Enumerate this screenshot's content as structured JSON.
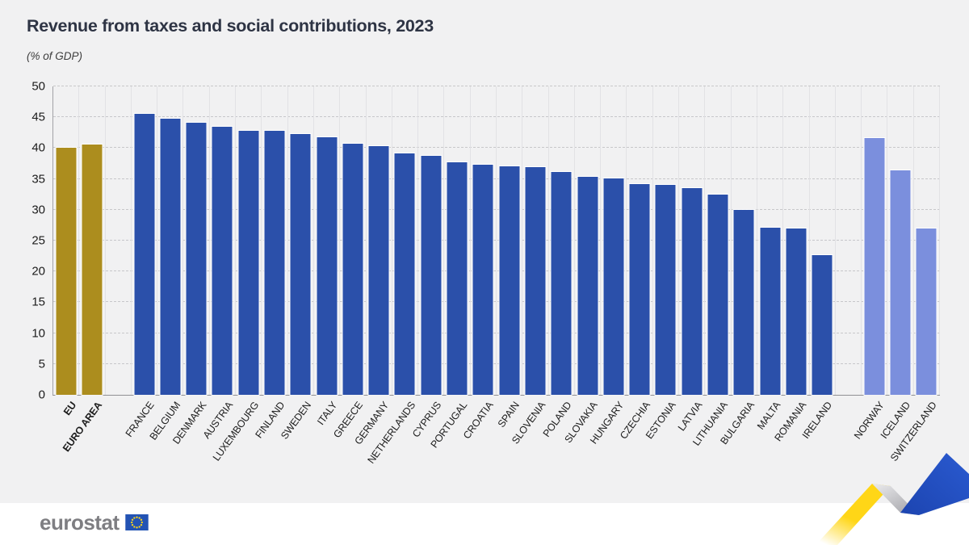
{
  "header": {
    "title": "Revenue from taxes and social contributions, 2023",
    "subtitle": "(% of GDP)"
  },
  "chart_data": {
    "type": "bar",
    "title": "Revenue from taxes and social contributions, 2023",
    "subtitle": "(% of GDP)",
    "unit": "% of GDP",
    "xlabel": "",
    "ylabel": "",
    "ylim": [
      0,
      50
    ],
    "ytick_step": 5,
    "yticks": [
      0,
      5,
      10,
      15,
      20,
      25,
      30,
      35,
      40,
      45,
      50
    ],
    "grid": "horizontal-dashed",
    "legend": "none",
    "groups": {
      "aggregate": {
        "color": "#AC8D1E",
        "label_style": "bold"
      },
      "member": {
        "color": "#2B50AA",
        "label_style": "normal"
      },
      "efta": {
        "color": "#7B8FDD",
        "label_style": "normal"
      }
    },
    "bars": [
      {
        "label": "EU",
        "value": 40.0,
        "group": "aggregate"
      },
      {
        "label": "EURO AREA",
        "value": 40.6,
        "group": "aggregate"
      },
      {
        "label": "",
        "value": null,
        "group": "spacer"
      },
      {
        "label": "FRANCE",
        "value": 45.6,
        "group": "member"
      },
      {
        "label": "BELGIUM",
        "value": 44.8,
        "group": "member"
      },
      {
        "label": "DENMARK",
        "value": 44.1,
        "group": "member"
      },
      {
        "label": "AUSTRIA",
        "value": 43.5,
        "group": "member"
      },
      {
        "label": "LUXEMBOURG",
        "value": 42.8,
        "group": "member"
      },
      {
        "label": "FINLAND",
        "value": 42.8,
        "group": "member"
      },
      {
        "label": "SWEDEN",
        "value": 42.3,
        "group": "member"
      },
      {
        "label": "ITALY",
        "value": 41.7,
        "group": "member"
      },
      {
        "label": "GREECE",
        "value": 40.7,
        "group": "member"
      },
      {
        "label": "GERMANY",
        "value": 40.3,
        "group": "member"
      },
      {
        "label": "NETHERLANDS",
        "value": 39.1,
        "group": "member"
      },
      {
        "label": "CYPRUS",
        "value": 38.8,
        "group": "member"
      },
      {
        "label": "PORTUGAL",
        "value": 37.7,
        "group": "member"
      },
      {
        "label": "CROATIA",
        "value": 37.3,
        "group": "member"
      },
      {
        "label": "SPAIN",
        "value": 37.0,
        "group": "member"
      },
      {
        "label": "SLOVENIA",
        "value": 36.9,
        "group": "member"
      },
      {
        "label": "POLAND",
        "value": 36.1,
        "group": "member"
      },
      {
        "label": "SLOVAKIA",
        "value": 35.4,
        "group": "member"
      },
      {
        "label": "HUNGARY",
        "value": 35.1,
        "group": "member"
      },
      {
        "label": "CZECHIA",
        "value": 34.1,
        "group": "member"
      },
      {
        "label": "ESTONIA",
        "value": 34.0,
        "group": "member"
      },
      {
        "label": "LATVIA",
        "value": 33.5,
        "group": "member"
      },
      {
        "label": "LITHUANIA",
        "value": 32.5,
        "group": "member"
      },
      {
        "label": "BULGARIA",
        "value": 30.0,
        "group": "member"
      },
      {
        "label": "MALTA",
        "value": 27.1,
        "group": "member"
      },
      {
        "label": "ROMANIA",
        "value": 27.0,
        "group": "member"
      },
      {
        "label": "IRELAND",
        "value": 22.7,
        "group": "member"
      },
      {
        "label": "",
        "value": null,
        "group": "spacer"
      },
      {
        "label": "NORWAY",
        "value": 41.6,
        "group": "efta"
      },
      {
        "label": "ICELAND",
        "value": 36.4,
        "group": "efta"
      },
      {
        "label": "SWITZERLAND",
        "value": 27.0,
        "group": "efta"
      }
    ]
  },
  "footer": {
    "logo_text": "eurostat",
    "flag_background": "#2353B4",
    "flag_star_color": "#FFD617",
    "ribbon_colors": {
      "yellow": "#FFD617",
      "gray": "#B5B5B9",
      "blue": "#2455C8"
    }
  },
  "style": {
    "page_background": "#F1F1F2",
    "footer_background": "#FFFFFF",
    "title_color": "#2E3444",
    "axis_label_color": "#1C1C1C",
    "gridline_color": "#C7C7CA"
  }
}
